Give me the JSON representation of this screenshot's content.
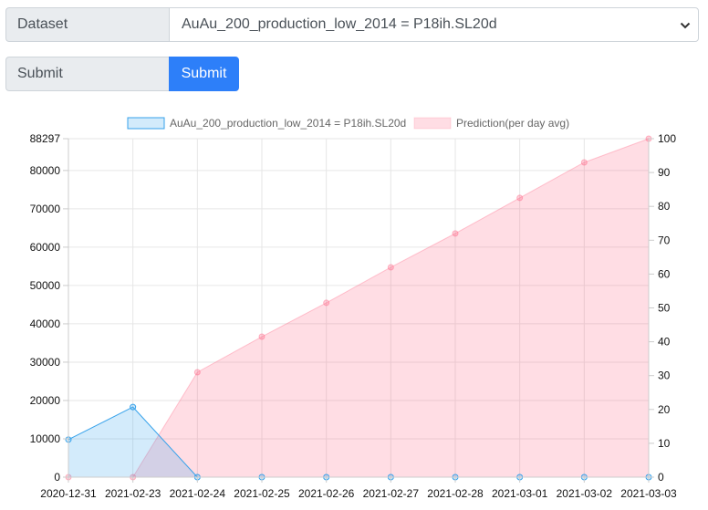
{
  "form": {
    "dataset_label": "Dataset",
    "dataset_selected": "AuAu_200_production_low_2014 = P18ih.SL20d",
    "submit_label": "Submit",
    "submit_button_label": "Submit"
  },
  "colors": {
    "primary_button": "#2d7ff9",
    "actual_fill": "rgba(54,162,235,0.22)",
    "actual_stroke": "#36a2eb",
    "prediction_fill": "rgba(255,99,132,0.22)",
    "prediction_stroke": "rgba(255,99,132,0.35)"
  },
  "chart_data": {
    "type": "area",
    "legend": "top",
    "grid": true,
    "categories": [
      "2020-12-31",
      "2021-02-23",
      "2021-02-24",
      "2021-02-25",
      "2021-02-26",
      "2021-02-27",
      "2021-02-28",
      "2021-03-01",
      "2021-03-02",
      "2021-03-03"
    ],
    "series": [
      {
        "name": "AuAu_200_production_low_2014 = P18ih.SL20d",
        "axis": "left",
        "values": [
          9800,
          18300,
          0,
          0,
          0,
          0,
          0,
          0,
          0,
          0
        ]
      },
      {
        "name": "Prediction(per day avg)",
        "axis": "right",
        "values": [
          0,
          0,
          31,
          41.5,
          51.5,
          62,
          72,
          82.5,
          93,
          100
        ]
      }
    ],
    "y_left": {
      "ylim": [
        0,
        88297
      ],
      "ticks": [
        "0",
        "10000",
        "20000",
        "30000",
        "40000",
        "50000",
        "60000",
        "70000",
        "80000",
        "88297"
      ]
    },
    "y_right": {
      "ylim": [
        0,
        100
      ],
      "ticks": [
        "0",
        "10",
        "20",
        "30",
        "40",
        "50",
        "60",
        "70",
        "80",
        "90",
        "100"
      ]
    }
  }
}
